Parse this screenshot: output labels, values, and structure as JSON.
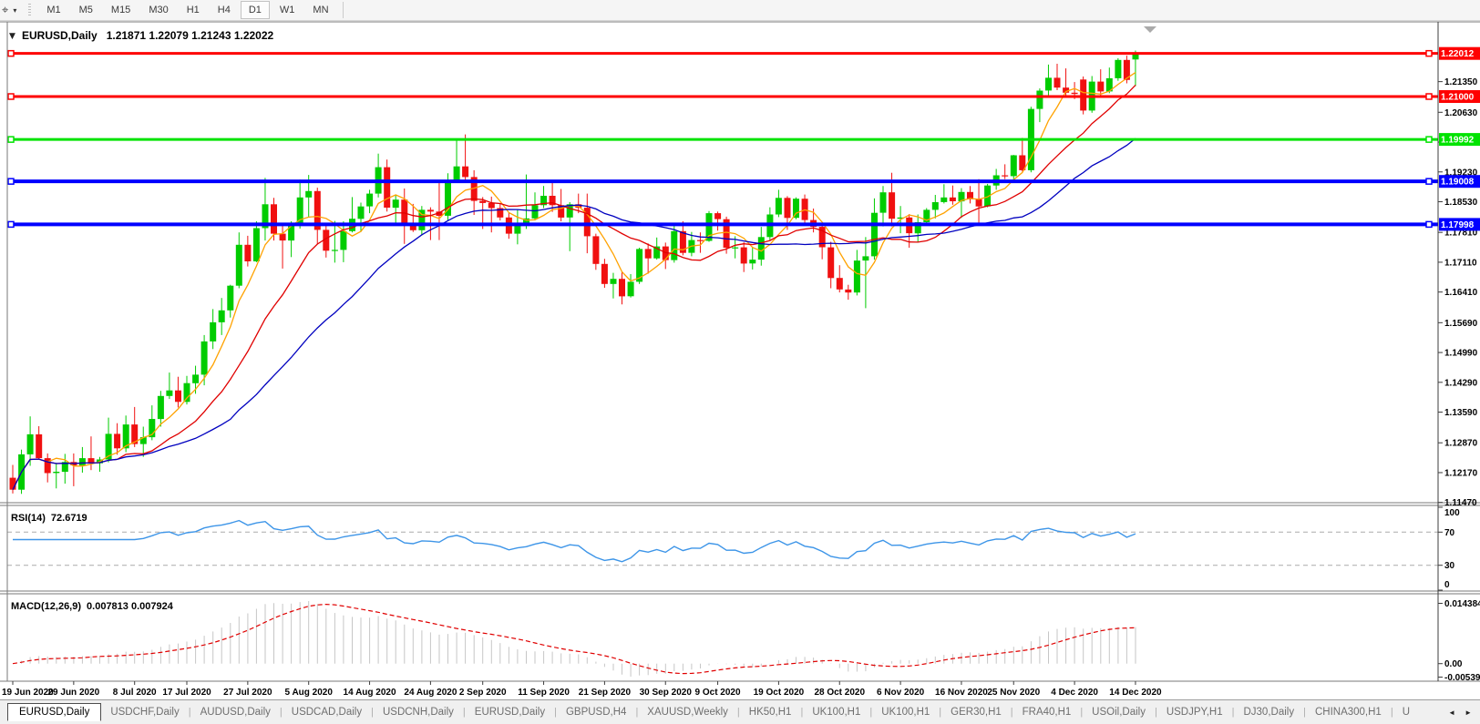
{
  "toolbar": {
    "tool_icon_glyph": "⌖",
    "dropdown_glyph": "▾",
    "timeframes": [
      "M1",
      "M5",
      "M15",
      "M30",
      "H1",
      "H4",
      "D1",
      "W1",
      "MN"
    ],
    "active_timeframe": "D1"
  },
  "chart": {
    "menu_arrow": "▼",
    "title_symbol": "EURUSD,Daily",
    "title_ohlc": "1.21871 1.22079 1.21243 1.22022",
    "rsi_label": "RSI(14)",
    "rsi_value": "72.6719",
    "macd_label": "MACD(12,26,9)",
    "macd_values": "0.007813 0.007924"
  },
  "axis": {
    "price_ticks": [
      "1.21350",
      "1.20630",
      "1.19930",
      "1.19230",
      "1.18530",
      "1.17810",
      "1.17110",
      "1.16410",
      "1.15690",
      "1.14990",
      "1.14290",
      "1.13590",
      "1.12870",
      "1.12170",
      "1.11470"
    ],
    "rsi_ticks": [
      {
        "label": "100",
        "value": 100
      },
      {
        "label": "70",
        "value": 70
      },
      {
        "label": "30",
        "value": 30
      },
      {
        "label": "0",
        "value": 0
      }
    ],
    "macd_ticks": {
      "max": "0.014384",
      "zero": "0.00",
      "min": "-0.005396"
    },
    "dates": [
      "19 Jun 2020",
      "29 Jun 2020",
      "8 Jul 2020",
      "17 Jul 2020",
      "27 Jul 2020",
      "5 Aug 2020",
      "14 Aug 2020",
      "24 Aug 2020",
      "2 Sep 2020",
      "11 Sep 2020",
      "21 Sep 2020",
      "30 Sep 2020",
      "9 Oct 2020",
      "19 Oct 2020",
      "28 Oct 2020",
      "6 Nov 2020",
      "16 Nov 2020",
      "25 Nov 2020",
      "4 Dec 2020",
      "14 Dec 2020"
    ]
  },
  "lines": [
    {
      "label": "1.22012",
      "price": 1.22012,
      "color": "#fe0000",
      "thickness": 3
    },
    {
      "label": "1.21000",
      "price": 1.21,
      "color": "#fe0000",
      "thickness": 3
    },
    {
      "label": "1.19992",
      "price": 1.19992,
      "color": "#00e300",
      "thickness": 3
    },
    {
      "label": "1.19008",
      "price": 1.19008,
      "color": "#0000ff",
      "thickness": 4
    },
    {
      "label": "1.17998",
      "price": 1.17998,
      "color": "#0000ff",
      "thickness": 4
    }
  ],
  "chart_data": {
    "type": "candlestick",
    "symbol": "EURUSD",
    "timeframe": "Daily",
    "up_color": "#00cc00",
    "down_color": "#f01010",
    "ma": [
      {
        "period": 5,
        "color": "#ffa200"
      },
      {
        "period": 13,
        "color": "#e00000"
      },
      {
        "period": 26,
        "color": "#0000bf"
      }
    ],
    "rsi": {
      "period": 14,
      "color": "#3d95e8",
      "levels": [
        70,
        30
      ],
      "range": [
        0,
        100
      ]
    },
    "macd": {
      "fast": 12,
      "slow": 26,
      "signal": 9,
      "hist_color": "#c6c6c6",
      "signal_color": "#e00000"
    },
    "current_bar": {
      "open": "1.21871",
      "high": "1.22079",
      "low": "1.21243",
      "close": "1.22022"
    },
    "ohlc": [
      [
        1.1205,
        1.1235,
        1.1168,
        1.1177
      ],
      [
        1.1177,
        1.1271,
        1.1167,
        1.126
      ],
      [
        1.126,
        1.1349,
        1.1233,
        1.1307
      ],
      [
        1.1307,
        1.1326,
        1.1248,
        1.1251
      ],
      [
        1.1251,
        1.1262,
        1.1194,
        1.1216
      ],
      [
        1.1216,
        1.124,
        1.118,
        1.1219
      ],
      [
        1.1219,
        1.1261,
        1.1191,
        1.1242
      ],
      [
        1.1242,
        1.1262,
        1.1185,
        1.1234
      ],
      [
        1.1234,
        1.1277,
        1.1217,
        1.1251
      ],
      [
        1.1251,
        1.1302,
        1.1223,
        1.1239
      ],
      [
        1.1239,
        1.1254,
        1.1219,
        1.1248
      ],
      [
        1.1248,
        1.1346,
        1.1241,
        1.1308
      ],
      [
        1.1308,
        1.1333,
        1.1259,
        1.1274
      ],
      [
        1.1274,
        1.1351,
        1.1265,
        1.133
      ],
      [
        1.133,
        1.1371,
        1.1277,
        1.1284
      ],
      [
        1.1284,
        1.1325,
        1.1254,
        1.13
      ],
      [
        1.13,
        1.1375,
        1.1293,
        1.1343
      ],
      [
        1.1343,
        1.1409,
        1.1325,
        1.1397
      ],
      [
        1.1397,
        1.1452,
        1.139,
        1.141
      ],
      [
        1.141,
        1.1442,
        1.137,
        1.1383
      ],
      [
        1.1383,
        1.1444,
        1.1377,
        1.1427
      ],
      [
        1.1427,
        1.1468,
        1.1402,
        1.1447
      ],
      [
        1.1447,
        1.154,
        1.1422,
        1.1525
      ],
      [
        1.1525,
        1.1601,
        1.1507,
        1.157
      ],
      [
        1.157,
        1.1627,
        1.154,
        1.1598
      ],
      [
        1.1598,
        1.1658,
        1.1581,
        1.1656
      ],
      [
        1.1656,
        1.1781,
        1.165,
        1.1752
      ],
      [
        1.1752,
        1.1773,
        1.1701,
        1.1713
      ],
      [
        1.1713,
        1.1807,
        1.1711,
        1.1791
      ],
      [
        1.1791,
        1.1909,
        1.1762,
        1.1847
      ],
      [
        1.1847,
        1.1862,
        1.1762,
        1.1778
      ],
      [
        1.1778,
        1.1797,
        1.1696,
        1.1762
      ],
      [
        1.1762,
        1.1807,
        1.1723,
        1.1803
      ],
      [
        1.1803,
        1.1905,
        1.179,
        1.1863
      ],
      [
        1.1863,
        1.1916,
        1.1818,
        1.1878
      ],
      [
        1.1878,
        1.1886,
        1.1754,
        1.1787
      ],
      [
        1.1787,
        1.18,
        1.1722,
        1.1738
      ],
      [
        1.1738,
        1.1808,
        1.171,
        1.174
      ],
      [
        1.174,
        1.1807,
        1.1711,
        1.1784
      ],
      [
        1.1784,
        1.1864,
        1.1781,
        1.1813
      ],
      [
        1.1813,
        1.1851,
        1.1782,
        1.1842
      ],
      [
        1.1842,
        1.1881,
        1.1826,
        1.1872
      ],
      [
        1.1872,
        1.1966,
        1.1863,
        1.1934
      ],
      [
        1.1934,
        1.1952,
        1.183,
        1.1839
      ],
      [
        1.1839,
        1.1869,
        1.1801,
        1.1858
      ],
      [
        1.1858,
        1.1884,
        1.1754,
        1.1797
      ],
      [
        1.1797,
        1.1848,
        1.1782,
        1.1786
      ],
      [
        1.1786,
        1.1843,
        1.1774,
        1.1834
      ],
      [
        1.1834,
        1.184,
        1.1763,
        1.183
      ],
      [
        1.183,
        1.1902,
        1.1763,
        1.182
      ],
      [
        1.182,
        1.192,
        1.181,
        1.1903
      ],
      [
        1.1903,
        1.1997,
        1.1897,
        1.1936
      ],
      [
        1.1936,
        1.2011,
        1.1901,
        1.1911
      ],
      [
        1.1911,
        1.1927,
        1.1822,
        1.1855
      ],
      [
        1.1855,
        1.1864,
        1.1789,
        1.185
      ],
      [
        1.185,
        1.1865,
        1.1781,
        1.1838
      ],
      [
        1.1838,
        1.1849,
        1.1809,
        1.1816
      ],
      [
        1.1816,
        1.1827,
        1.1766,
        1.1778
      ],
      [
        1.1778,
        1.1834,
        1.1753,
        1.1801
      ],
      [
        1.1801,
        1.1917,
        1.1789,
        1.1814
      ],
      [
        1.1814,
        1.1875,
        1.1809,
        1.1845
      ],
      [
        1.1845,
        1.189,
        1.1838,
        1.1867
      ],
      [
        1.1867,
        1.19,
        1.1829,
        1.1845
      ],
      [
        1.1845,
        1.1883,
        1.1807,
        1.1816
      ],
      [
        1.1816,
        1.1852,
        1.1737,
        1.1847
      ],
      [
        1.1847,
        1.1872,
        1.1826,
        1.1839
      ],
      [
        1.1839,
        1.1872,
        1.1732,
        1.1772
      ],
      [
        1.1772,
        1.1778,
        1.1693,
        1.1707
      ],
      [
        1.1707,
        1.1719,
        1.1651,
        1.166
      ],
      [
        1.166,
        1.1686,
        1.1626,
        1.1672
      ],
      [
        1.1672,
        1.1688,
        1.1612,
        1.1631
      ],
      [
        1.1631,
        1.1683,
        1.1628,
        1.1665
      ],
      [
        1.1665,
        1.1745,
        1.166,
        1.1742
      ],
      [
        1.1742,
        1.1755,
        1.1684,
        1.172
      ],
      [
        1.172,
        1.1769,
        1.1717,
        1.1748
      ],
      [
        1.1748,
        1.1757,
        1.1695,
        1.1716
      ],
      [
        1.1716,
        1.1797,
        1.171,
        1.1784
      ],
      [
        1.1784,
        1.1807,
        1.1727,
        1.1733
      ],
      [
        1.1733,
        1.1782,
        1.1725,
        1.1763
      ],
      [
        1.1763,
        1.1781,
        1.1733,
        1.1761
      ],
      [
        1.1761,
        1.1831,
        1.1759,
        1.1826
      ],
      [
        1.1826,
        1.183,
        1.1785,
        1.1812
      ],
      [
        1.1812,
        1.1818,
        1.1731,
        1.1745
      ],
      [
        1.1745,
        1.1772,
        1.172,
        1.1746
      ],
      [
        1.1746,
        1.1758,
        1.1688,
        1.1708
      ],
      [
        1.1708,
        1.1747,
        1.1694,
        1.1717
      ],
      [
        1.1717,
        1.1794,
        1.1703,
        1.177
      ],
      [
        1.177,
        1.184,
        1.1763,
        1.1823
      ],
      [
        1.1823,
        1.1881,
        1.1817,
        1.1862
      ],
      [
        1.1862,
        1.1866,
        1.1787,
        1.1815
      ],
      [
        1.1815,
        1.1863,
        1.1812,
        1.186
      ],
      [
        1.186,
        1.187,
        1.1803,
        1.181
      ],
      [
        1.181,
        1.1837,
        1.1781,
        1.1794
      ],
      [
        1.1794,
        1.18,
        1.1718,
        1.1746
      ],
      [
        1.1746,
        1.1759,
        1.165,
        1.1674
      ],
      [
        1.1674,
        1.1704,
        1.164,
        1.1647
      ],
      [
        1.1647,
        1.1658,
        1.1623,
        1.164
      ],
      [
        1.164,
        1.174,
        1.1633,
        1.1715
      ],
      [
        1.1715,
        1.177,
        1.1603,
        1.1725
      ],
      [
        1.1725,
        1.1861,
        1.1717,
        1.1827
      ],
      [
        1.1827,
        1.189,
        1.1795,
        1.1875
      ],
      [
        1.1875,
        1.1921,
        1.1795,
        1.1813
      ],
      [
        1.1813,
        1.1843,
        1.1779,
        1.1816
      ],
      [
        1.1816,
        1.1824,
        1.1745,
        1.1779
      ],
      [
        1.1779,
        1.1823,
        1.1758,
        1.1805
      ],
      [
        1.1805,
        1.1838,
        1.1799,
        1.1834
      ],
      [
        1.1834,
        1.1869,
        1.1814,
        1.1852
      ],
      [
        1.1852,
        1.1894,
        1.1849,
        1.1863
      ],
      [
        1.1863,
        1.1891,
        1.1846,
        1.1854
      ],
      [
        1.1854,
        1.1885,
        1.1815,
        1.1876
      ],
      [
        1.1876,
        1.189,
        1.1849,
        1.1859
      ],
      [
        1.1859,
        1.1906,
        1.18,
        1.1842
      ],
      [
        1.1842,
        1.1895,
        1.184,
        1.1891
      ],
      [
        1.1891,
        1.193,
        1.1881,
        1.1915
      ],
      [
        1.1915,
        1.1941,
        1.1906,
        1.1913
      ],
      [
        1.1913,
        1.1963,
        1.1904,
        1.1962
      ],
      [
        1.1962,
        1.2003,
        1.1924,
        1.1927
      ],
      [
        1.1927,
        1.2076,
        1.1922,
        1.2071
      ],
      [
        1.2071,
        1.2119,
        1.204,
        1.2114
      ],
      [
        1.2114,
        1.2175,
        1.2098,
        1.2144
      ],
      [
        1.2144,
        1.2177,
        1.2115,
        1.2121
      ],
      [
        1.2121,
        1.2166,
        1.21,
        1.2109
      ],
      [
        1.2109,
        1.2134,
        1.2094,
        1.2106
      ],
      [
        1.214,
        1.2147,
        1.2058,
        1.2067
      ],
      [
        1.2067,
        1.2148,
        1.2062,
        1.2135
      ],
      [
        1.2135,
        1.2164,
        1.2102,
        1.2112
      ],
      [
        1.2112,
        1.2168,
        1.2108,
        1.2143
      ],
      [
        1.2143,
        1.219,
        1.2137,
        1.2186
      ],
      [
        1.2186,
        1.2196,
        1.2131,
        1.2139
      ],
      [
        1.21871,
        1.22079,
        1.21243,
        1.22022
      ]
    ]
  },
  "tabs": {
    "items": [
      {
        "label": "EURUSD,Daily",
        "active": true
      },
      {
        "label": "USDCHF,Daily",
        "active": false
      },
      {
        "label": "AUDUSD,Daily",
        "active": false
      },
      {
        "label": "USDCAD,Daily",
        "active": false
      },
      {
        "label": "USDCNH,Daily",
        "active": false
      },
      {
        "label": "EURUSD,Daily",
        "active": false
      },
      {
        "label": "GBPUSD,H4",
        "active": false
      },
      {
        "label": "XAUUSD,Weekly",
        "active": false
      },
      {
        "label": "HK50,H1",
        "active": false
      },
      {
        "label": "UK100,H1",
        "active": false
      },
      {
        "label": "UK100,H1",
        "active": false
      },
      {
        "label": "GER30,H1",
        "active": false
      },
      {
        "label": "FRA40,H1",
        "active": false
      },
      {
        "label": "USOil,Daily",
        "active": false
      },
      {
        "label": "USDJPY,H1",
        "active": false
      },
      {
        "label": "DJ30,Daily",
        "active": false
      },
      {
        "label": "CHINA300,H1",
        "active": false
      },
      {
        "label": "U",
        "active": false
      }
    ],
    "scroll_left_glyph": "◄",
    "scroll_right_glyph": "►"
  }
}
